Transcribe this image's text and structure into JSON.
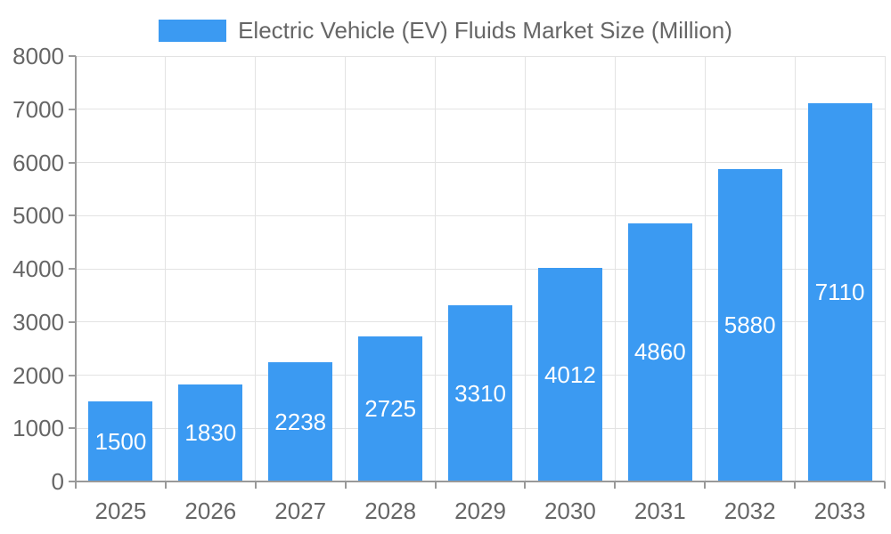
{
  "chart_data": {
    "type": "bar",
    "title": "Electric Vehicle (EV) Fluids Market Size (Million)",
    "legend_entries": [
      "Electric Vehicle (EV) Fluids Market Size (Million)"
    ],
    "legend_position": "top",
    "categories": [
      "2025",
      "2026",
      "2027",
      "2028",
      "2029",
      "2030",
      "2031",
      "2032",
      "2033"
    ],
    "values": [
      1500,
      1830,
      2238,
      2725,
      3310,
      4012,
      4860,
      5880,
      7110
    ],
    "xlabel": "",
    "ylabel": "",
    "ylim": [
      0,
      8000
    ],
    "ytick_step": 1000,
    "ytick_labels": [
      "0",
      "1000",
      "2000",
      "3000",
      "4000",
      "5000",
      "6000",
      "7000",
      "8000"
    ],
    "grid": true,
    "bar_labels_shown": true
  },
  "colors": {
    "bar": "#3b9af2",
    "grid": "#e3e3e3",
    "axis": "#999999",
    "text": "#666666",
    "value_label": "#ffffff",
    "background": "#ffffff"
  }
}
